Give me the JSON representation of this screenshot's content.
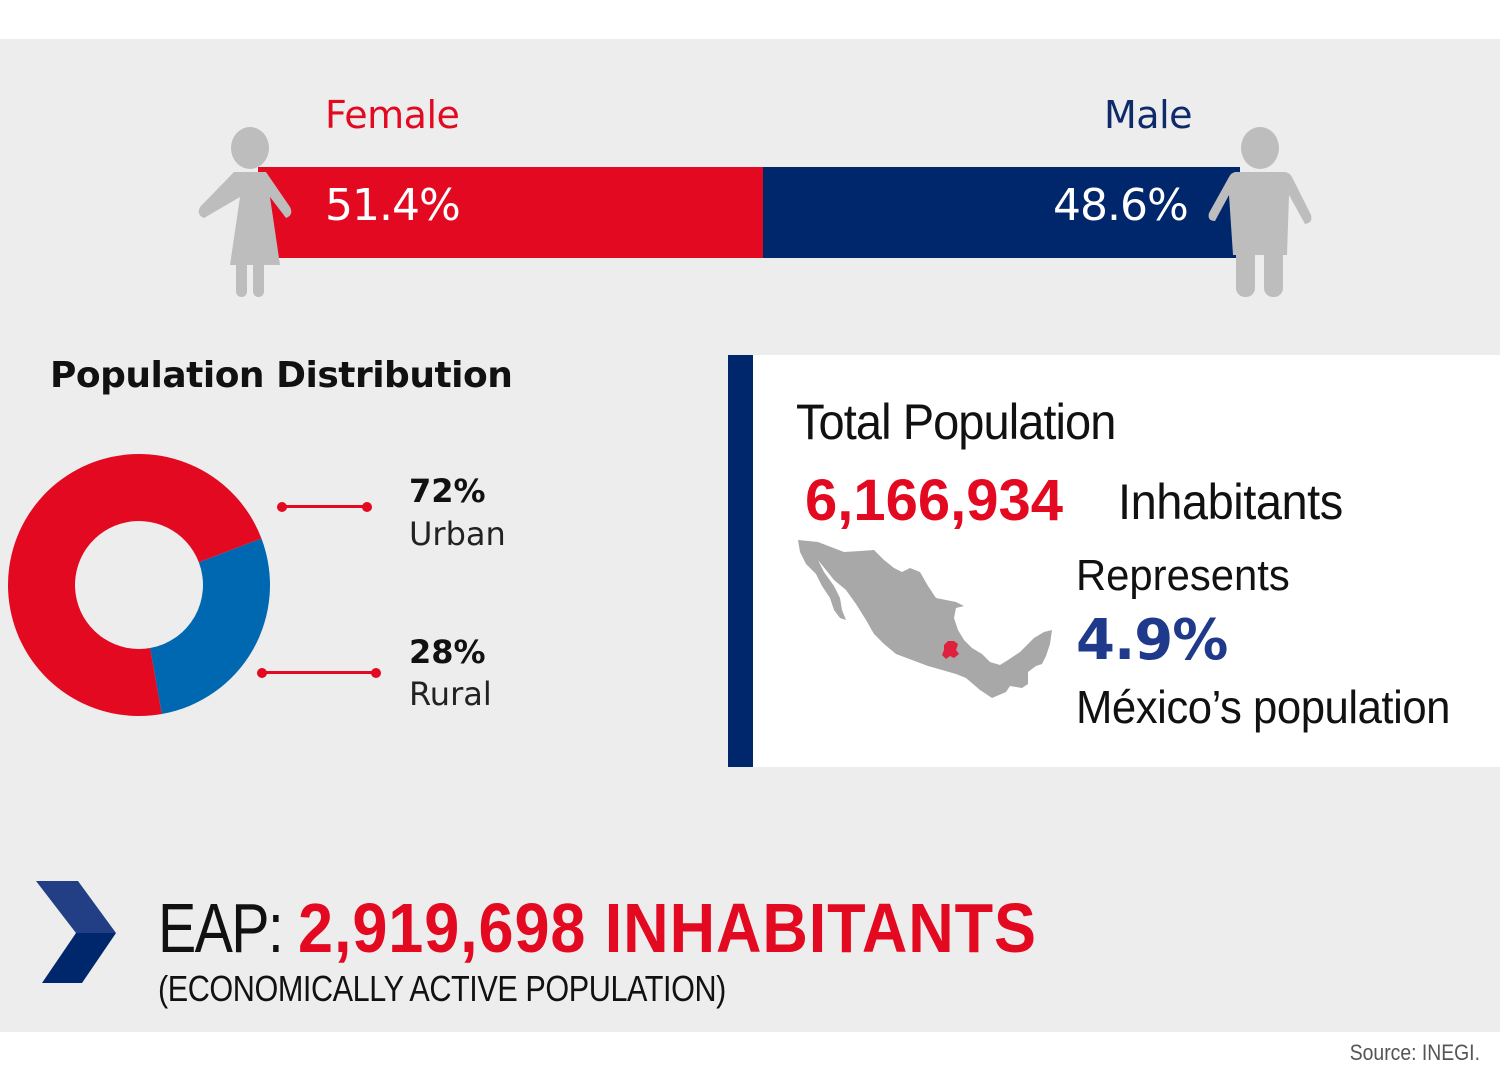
{
  "colors": {
    "red": "#e30920",
    "navy": "#00266c",
    "blue_slice": "#0067b1",
    "figure_grey": "#bdbdbd",
    "panel_grey": "#ededed",
    "map_grey": "#a8a8a8"
  },
  "gender": {
    "female": {
      "label": "Female",
      "value_text": "51.4%",
      "percent": 51.4,
      "icon": "female-person-icon"
    },
    "male": {
      "label": "Male",
      "value_text": "48.6%",
      "percent": 48.6,
      "icon": "male-person-icon"
    }
  },
  "distribution": {
    "title": "Population Distribution",
    "items": [
      {
        "name": "Urban",
        "pct_text": "72%",
        "value": 72
      },
      {
        "name": "Rural",
        "pct_text": "28%",
        "value": 28
      }
    ]
  },
  "chart_data": {
    "type": "pie",
    "title": "Population Distribution",
    "categories": [
      "Urban",
      "Rural"
    ],
    "values": [
      72,
      28
    ],
    "unit": "%",
    "donut": true,
    "legend": "right"
  },
  "total_population": {
    "title": "Total Population",
    "number": "6,166,934",
    "unit": "Inhabitants",
    "represents_label": "Represents",
    "share": "4.9%",
    "share_description": "México’s population",
    "map_icon": "mexico-map-icon"
  },
  "eap": {
    "label": "EAP:",
    "value": "2,919,698 INHABITANTS",
    "subtitle": "(ECONOMICALLY ACTIVE POPULATION)"
  },
  "source": "Source: INEGI."
}
